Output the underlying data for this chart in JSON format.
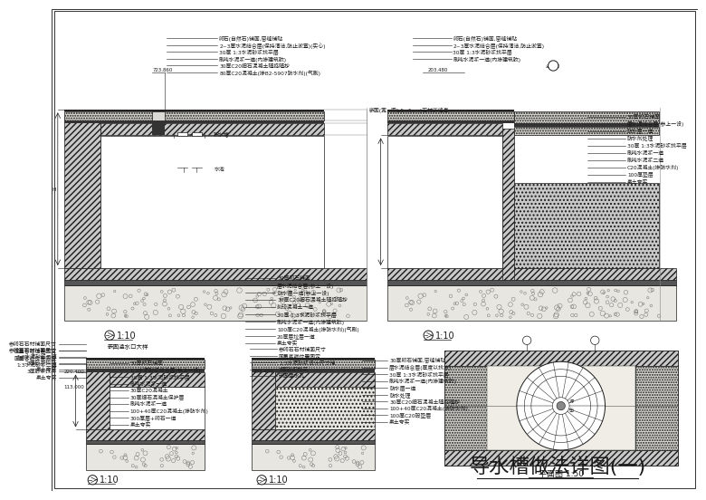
{
  "title": "导水槽做法详图(一)",
  "plan_label": "平面图 1:50",
  "scale_110": "1:10",
  "bg_color": "#ffffff",
  "lc": "#1a1a1a",
  "tc": "#1a1a1a",
  "hatch_fc_diag": "#c8c8c8",
  "hatch_fc_gravel": "#e8e6e0",
  "hatch_fc_stone": "#dcdad4",
  "title_fontsize": 16,
  "anno_fontsize": 4.2,
  "scale_fontsize": 7.0,
  "tl_labels": [
    "卵石(自然石)铺面,密缝铺贴",
    "2~3厚水泥结合层(保持清洁,防止淤塞)(实心)",
    "30厚 1:3水泥砂浆找平层",
    "刷纯水泥浆一道(内掺建筑胶)",
    "30厚C20细石混凝土随捣随抄",
    "80厚C20混凝土(掺B2-5907防水剂)(气刷)"
  ],
  "tl_right_labels": [
    "30厚卵石铺面",
    "层水泥结合层(参上一设)",
    "防水层一道(参上一设)",
    "30厚C20细石混凝土随捣随抄",
    "刻印混凝土一道",
    "30厚 1:3水泥砂浆找平层",
    "刷纯水泥浆一道(内掺建筑胶)",
    "100厚C20混凝土(掺防水剂)(气刷)",
    "20厚层垃层一道",
    "素土夸实"
  ],
  "tr_labels": [
    "卵石(自然石)铺面,密缝铺贴",
    "2~3厚水泥结合层(保持清洁,防止淤塞)",
    "30厚 1:3水泥砂浆找平层",
    "刷纯水泥浆一道(内掺建筑胶)"
  ],
  "tr_right_labels": [
    "30厚卵石铺面",
    "层水泥结合层(参上一设)",
    "防水层一道",
    "防水剂处理",
    "30厚 1:3水泥砂浆找平层",
    "刷纯水泥浆一道",
    "刷纯水泥浆二道",
    "C20混凝土(掺防水剂)",
    "100厚垫层",
    "素土夸实"
  ],
  "bl_top_labels": [
    "参卵石石材铺面尺寸",
    "围量客寤位置固定",
    "1:3水泥砂浆二遍",
    "3厚砂浆找平",
    "素土夸实"
  ],
  "bl_bot_labels": [
    "30厚卵石铺面",
    "1:3水泥砂浆结合层(参上一设)",
    "30厚 1:3水泥砂浆找平层",
    "刷纯水泥浆一道",
    "30厚C20混凝土",
    "30厚细石混凝土保护层",
    "刷纯水泥浆一道",
    "100+40厚C20混凝土(掺防水剂)",
    "300厚层+卵石一道",
    "素土夸实"
  ],
  "bm_top_labels": [
    "参卵石石材铺面尺寸",
    "围量客寤位置固定",
    "1:3水泥砂浆设计尺寸铺",
    "3厚砂浆找平",
    "嵌固溢水孔"
  ],
  "bm_right_labels": [
    "30厚卵石铺面,密缝铺贴",
    "层水泥结合层(厚度以找坡)",
    "30厚 1:3水泥砂浆找平层",
    "刷纯水泥浆一道(内掺建筑胶)",
    "防水层一道",
    "防水处理",
    "30厚C20细石混凝土随捣随抄",
    "100+40厚C20混凝土(掺防水剂)",
    "100厚C20砓垫层",
    "素土夸实"
  ]
}
